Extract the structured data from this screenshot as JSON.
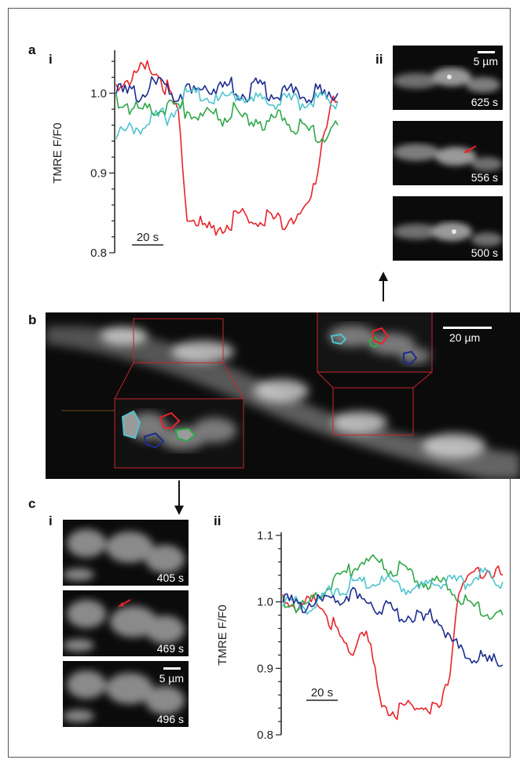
{
  "labels": {
    "a": "a",
    "a_i": "i",
    "a_ii": "ii",
    "b": "b",
    "c": "c",
    "c_i": "i",
    "c_ii": "ii"
  },
  "colors": {
    "red": "#e8232b",
    "darkblue": "#1d2d8e",
    "cyan": "#4fc4cf",
    "green": "#2fa84a"
  },
  "a_ii": {
    "scalebar": "5 µm",
    "panels": [
      {
        "time": "625 s"
      },
      {
        "time": "556 s"
      },
      {
        "time": "500 s"
      }
    ]
  },
  "b": {
    "scalebar": "20 µm"
  },
  "c_i": {
    "scalebar": "5 µm",
    "panels": [
      {
        "time": "405 s"
      },
      {
        "time": "469 s"
      },
      {
        "time": "496 s"
      }
    ]
  },
  "chart_data": [
    {
      "id": "a_i",
      "type": "line",
      "ylabel": "TMRE F/F0",
      "ylim": [
        0.8,
        1.05
      ],
      "yticks": [
        "0.8",
        "0.9",
        "1.0"
      ],
      "scalebar_label": "20 s",
      "series": [
        {
          "color": "red",
          "values": [
            1.0,
            1.02,
            1.02,
            1.03,
            1.03,
            1.02,
            1.0,
            0.97,
            0.85,
            0.84,
            0.83,
            0.825,
            0.835,
            0.84,
            0.845,
            0.84,
            0.84,
            0.845,
            0.84,
            0.84,
            0.845,
            0.845,
            0.86,
            0.93,
            0.98,
            0.99
          ]
        },
        {
          "color": "darkblue",
          "values": [
            1.0,
            1.0,
            1.0,
            1.0,
            1.01,
            1.01,
            1.0,
            1.0,
            1.0,
            1.0,
            1.01,
            1.01,
            1.0,
            1.01,
            1.0,
            1.0,
            1.01,
            1.0,
            1.0,
            1.0,
            1.0,
            1.0,
            1.0,
            1.0,
            0.99,
            1.0
          ]
        },
        {
          "color": "cyan",
          "values": [
            0.95,
            0.95,
            0.96,
            0.96,
            0.97,
            0.97,
            0.97,
            0.99,
            1.0,
            1.0,
            1.0,
            0.99,
            0.99,
            1.0,
            1.0,
            0.99,
            0.99,
            0.99,
            0.99,
            0.99,
            0.99,
            0.99,
            0.99,
            0.99,
            0.99,
            0.99
          ]
        },
        {
          "color": "green",
          "values": [
            0.99,
            0.99,
            0.98,
            0.98,
            0.98,
            0.98,
            0.98,
            0.98,
            0.98,
            0.97,
            0.97,
            0.97,
            0.97,
            0.98,
            0.97,
            0.97,
            0.97,
            0.96,
            0.97,
            0.97,
            0.96,
            0.96,
            0.95,
            0.95,
            0.95,
            0.96
          ]
        }
      ]
    },
    {
      "id": "c_ii",
      "type": "line",
      "ylabel": "TMRE F/F0",
      "ylim": [
        0.8,
        1.1
      ],
      "yticks": [
        "0.8",
        "0.9",
        "1.0",
        "1.1"
      ],
      "scalebar_label": "20 s",
      "series": [
        {
          "color": "red",
          "values": [
            1.0,
            1.0,
            0.99,
            1.0,
            1.0,
            0.98,
            0.96,
            0.93,
            0.93,
            0.96,
            0.93,
            0.85,
            0.84,
            0.835,
            0.84,
            0.84,
            0.845,
            0.84,
            0.84,
            0.9,
            1.02,
            1.03,
            1.04,
            1.05,
            1.045,
            1.04
          ]
        },
        {
          "color": "green",
          "values": [
            1.0,
            1.0,
            0.99,
            1.0,
            1.01,
            1.02,
            1.03,
            1.04,
            1.05,
            1.06,
            1.06,
            1.055,
            1.05,
            1.05,
            1.05,
            1.04,
            1.03,
            1.03,
            1.03,
            1.02,
            1.01,
            1.0,
            0.99,
            0.99,
            0.98,
            0.98
          ]
        },
        {
          "color": "cyan",
          "values": [
            1.0,
            1.0,
            1.0,
            0.99,
            1.0,
            1.01,
            1.02,
            1.02,
            1.03,
            1.03,
            1.03,
            1.03,
            1.03,
            1.03,
            1.02,
            1.02,
            1.02,
            1.03,
            1.03,
            1.03,
            1.03,
            1.03,
            1.04,
            1.04,
            1.03,
            1.03
          ]
        },
        {
          "color": "darkblue",
          "values": [
            1.0,
            1.0,
            0.99,
            1.0,
            1.0,
            1.0,
            1.0,
            1.01,
            1.01,
            1.0,
            1.0,
            0.99,
            0.99,
            0.98,
            0.98,
            0.98,
            0.97,
            0.98,
            0.97,
            0.94,
            0.93,
            0.92,
            0.92,
            0.91,
            0.91,
            0.905
          ]
        }
      ]
    }
  ]
}
